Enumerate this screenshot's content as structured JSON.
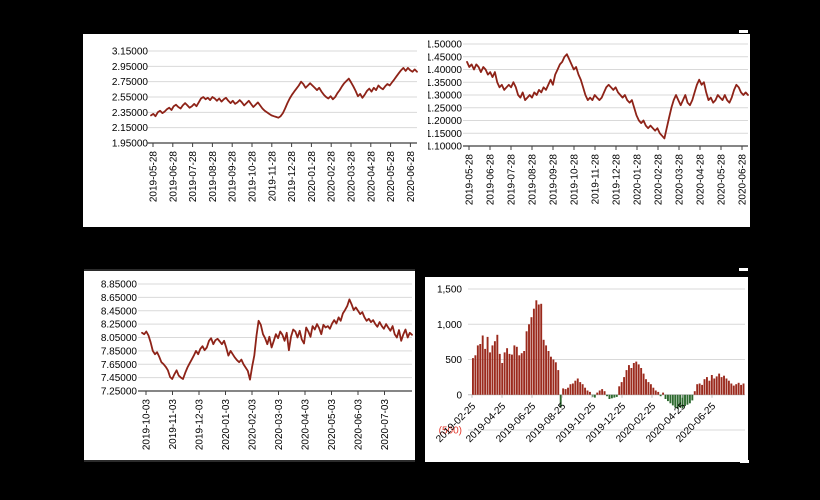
{
  "window": {
    "background": "#000000",
    "panel_color": "#ffffff"
  },
  "colors": {
    "line_red": "#8e2318",
    "bar_red": "#9b2a1d",
    "bar_green": "#2d6a2f",
    "gridline": "#d9d9d9",
    "axis_dark": "#3f3f3f",
    "axis_gray": "#bfbfbf",
    "tick_text": "#000000",
    "negative_label_red": "#e43a2e"
  },
  "chart_data": [
    {
      "id": "top-left",
      "type": "line",
      "title": "",
      "xlabel": "",
      "ylabel": "",
      "legend": "none",
      "grid": "horizontal",
      "ylim": [
        1.95,
        3.15
      ],
      "y_tick_labels": [
        "3.15000",
        "2.95000",
        "2.75000",
        "2.55000",
        "2.35000",
        "2.15000",
        "1.95000"
      ],
      "x_tick_labels": [
        "2019-05-28",
        "2019-06-28",
        "2019-07-28",
        "2019-08-28",
        "2019-09-28",
        "2019-10-28",
        "2019-11-28",
        "2019-12-28",
        "2020-01-28",
        "2020-02-28",
        "2020-03-28",
        "2020-04-28",
        "2020-05-28",
        "2020-06-28"
      ],
      "x_label_rotation": 90,
      "line_color": "#8e2318",
      "values": [
        2.31,
        2.33,
        2.3,
        2.35,
        2.37,
        2.34,
        2.36,
        2.39,
        2.41,
        2.38,
        2.43,
        2.45,
        2.42,
        2.4,
        2.44,
        2.47,
        2.44,
        2.41,
        2.43,
        2.46,
        2.43,
        2.48,
        2.53,
        2.55,
        2.52,
        2.54,
        2.51,
        2.55,
        2.53,
        2.5,
        2.53,
        2.49,
        2.52,
        2.54,
        2.5,
        2.47,
        2.5,
        2.46,
        2.48,
        2.51,
        2.48,
        2.44,
        2.47,
        2.5,
        2.46,
        2.42,
        2.45,
        2.48,
        2.44,
        2.4,
        2.37,
        2.35,
        2.33,
        2.31,
        2.3,
        2.29,
        2.28,
        2.3,
        2.34,
        2.4,
        2.47,
        2.53,
        2.58,
        2.62,
        2.66,
        2.7,
        2.75,
        2.72,
        2.67,
        2.7,
        2.73,
        2.7,
        2.67,
        2.64,
        2.67,
        2.62,
        2.58,
        2.55,
        2.53,
        2.56,
        2.52,
        2.55,
        2.6,
        2.64,
        2.69,
        2.73,
        2.76,
        2.79,
        2.74,
        2.69,
        2.63,
        2.56,
        2.59,
        2.54,
        2.58,
        2.63,
        2.66,
        2.62,
        2.67,
        2.64,
        2.7,
        2.67,
        2.65,
        2.69,
        2.72,
        2.7,
        2.74,
        2.78,
        2.82,
        2.86,
        2.9,
        2.93,
        2.89,
        2.93,
        2.9,
        2.88,
        2.91,
        2.88
      ]
    },
    {
      "id": "top-right",
      "type": "line",
      "title": "",
      "xlabel": "",
      "ylabel": "",
      "legend": "none",
      "grid": "horizontal",
      "ylim": [
        1.1,
        1.5
      ],
      "y_tick_labels": [
        "1.50000",
        "1.45000",
        "1.40000",
        "1.35000",
        "1.30000",
        "1.25000",
        "1.20000",
        "1.15000",
        "1.10000"
      ],
      "x_tick_labels": [
        "2019-05-28",
        "2019-06-28",
        "2019-07-28",
        "2019-08-28",
        "2019-09-28",
        "2019-10-28",
        "2019-11-28",
        "2019-12-28",
        "2020-01-28",
        "2020-02-28",
        "2020-03-28",
        "2020-04-28",
        "2020-05-28",
        "2020-06-28"
      ],
      "x_label_rotation": 90,
      "line_color": "#8e2318",
      "values": [
        1.43,
        1.41,
        1.42,
        1.4,
        1.42,
        1.41,
        1.39,
        1.41,
        1.4,
        1.38,
        1.39,
        1.37,
        1.39,
        1.35,
        1.33,
        1.34,
        1.32,
        1.33,
        1.34,
        1.33,
        1.35,
        1.33,
        1.3,
        1.29,
        1.31,
        1.28,
        1.29,
        1.3,
        1.29,
        1.31,
        1.3,
        1.32,
        1.31,
        1.33,
        1.32,
        1.34,
        1.36,
        1.34,
        1.38,
        1.4,
        1.42,
        1.43,
        1.45,
        1.46,
        1.44,
        1.42,
        1.4,
        1.41,
        1.38,
        1.36,
        1.33,
        1.3,
        1.28,
        1.29,
        1.28,
        1.3,
        1.29,
        1.28,
        1.29,
        1.31,
        1.33,
        1.34,
        1.33,
        1.32,
        1.33,
        1.31,
        1.3,
        1.29,
        1.3,
        1.28,
        1.27,
        1.28,
        1.25,
        1.22,
        1.2,
        1.19,
        1.2,
        1.18,
        1.17,
        1.18,
        1.17,
        1.16,
        1.17,
        1.15,
        1.14,
        1.13,
        1.17,
        1.21,
        1.25,
        1.28,
        1.3,
        1.28,
        1.26,
        1.28,
        1.3,
        1.27,
        1.26,
        1.28,
        1.31,
        1.34,
        1.36,
        1.34,
        1.35,
        1.31,
        1.28,
        1.29,
        1.27,
        1.28,
        1.3,
        1.29,
        1.28,
        1.3,
        1.28,
        1.27,
        1.29,
        1.32,
        1.34,
        1.33,
        1.31,
        1.3,
        1.31,
        1.3
      ]
    },
    {
      "id": "bottom-left",
      "type": "line",
      "title": "",
      "xlabel": "",
      "ylabel": "",
      "legend": "none",
      "grid": "horizontal",
      "ylim": [
        7.25,
        8.85
      ],
      "y_tick_labels": [
        "8.85000",
        "8.65000",
        "8.45000",
        "8.25000",
        "8.05000",
        "7.85000",
        "7.65000",
        "7.45000",
        "7.25000"
      ],
      "x_tick_labels": [
        "2019-10-03",
        "2019-11-03",
        "2019-12-03",
        "2020-01-03",
        "2020-02-03",
        "2020-03-03",
        "2020-04-03",
        "2020-05-03",
        "2020-06-03",
        "2020-07-03"
      ],
      "x_label_rotation": 90,
      "line_color": "#8e2318",
      "values": [
        8.12,
        8.1,
        8.14,
        8.08,
        7.98,
        7.85,
        7.8,
        7.83,
        7.76,
        7.68,
        7.65,
        7.61,
        7.56,
        7.46,
        7.43,
        7.5,
        7.56,
        7.48,
        7.45,
        7.43,
        7.52,
        7.6,
        7.66,
        7.72,
        7.78,
        7.85,
        7.8,
        7.88,
        7.92,
        7.86,
        7.9,
        8.0,
        8.04,
        7.95,
        8.01,
        8.03,
        7.99,
        7.95,
        8.0,
        7.9,
        7.78,
        7.85,
        7.8,
        7.75,
        7.71,
        7.68,
        7.72,
        7.65,
        7.6,
        7.55,
        7.42,
        7.62,
        7.78,
        8.08,
        8.3,
        8.24,
        8.1,
        8.04,
        7.95,
        8.06,
        7.9,
        8.0,
        8.1,
        8.04,
        8.14,
        8.09,
        8.0,
        8.12,
        7.86,
        8.06,
        8.17,
        8.14,
        8.05,
        8.15,
        8.02,
        7.96,
        8.2,
        8.14,
        8.06,
        8.22,
        8.17,
        8.25,
        8.19,
        8.1,
        8.24,
        8.2,
        8.22,
        8.18,
        8.26,
        8.31,
        8.26,
        8.35,
        8.3,
        8.41,
        8.46,
        8.52,
        8.62,
        8.55,
        8.46,
        8.5,
        8.45,
        8.4,
        8.43,
        8.35,
        8.3,
        8.33,
        8.28,
        8.31,
        8.25,
        8.21,
        8.28,
        8.22,
        8.18,
        8.25,
        8.2,
        8.15,
        8.22,
        8.1,
        8.05,
        8.16,
        8.0,
        8.1,
        8.17,
        8.05,
        8.12,
        8.09
      ]
    },
    {
      "id": "bottom-right",
      "type": "bar",
      "title": "",
      "xlabel": "",
      "ylabel": "",
      "legend": "none",
      "grid": "horizontal",
      "ylim": [
        -500,
        1500
      ],
      "y_tick_labels": [
        "1,500",
        "1,000",
        "500",
        "0",
        "(500)"
      ],
      "negative_tick_label": "(500)",
      "x_tick_labels": [
        "2019-02-25",
        "2019-04-25",
        "2019-06-25",
        "2019-08-25",
        "2019-10-25",
        "2019-12-25",
        "2020-02-25",
        "2020-04-25",
        "2020-06-25"
      ],
      "x_label_rotation": 45,
      "positive_color": "#9b2a1d",
      "negative_color": "#2d6a2f",
      "values": [
        520,
        560,
        700,
        720,
        840,
        650,
        820,
        600,
        700,
        760,
        850,
        580,
        450,
        600,
        660,
        580,
        570,
        700,
        680,
        560,
        590,
        620,
        900,
        1000,
        1100,
        1220,
        1340,
        1280,
        1290,
        780,
        700,
        620,
        540,
        500,
        460,
        350,
        -180,
        90,
        80,
        100,
        150,
        160,
        200,
        230,
        180,
        150,
        100,
        60,
        40,
        -30,
        -40,
        30,
        60,
        80,
        50,
        -20,
        -60,
        -50,
        -40,
        -30,
        120,
        180,
        250,
        350,
        420,
        380,
        450,
        470,
        430,
        380,
        300,
        220,
        180,
        150,
        100,
        60,
        40,
        -20,
        30,
        -60,
        -90,
        -120,
        -150,
        -180,
        -200,
        -170,
        -190,
        -160,
        -140,
        -120,
        -80,
        50,
        150,
        160,
        140,
        220,
        250,
        200,
        280,
        230,
        260,
        300,
        250,
        270,
        230,
        200,
        160,
        130,
        150,
        170,
        140,
        160
      ]
    }
  ]
}
